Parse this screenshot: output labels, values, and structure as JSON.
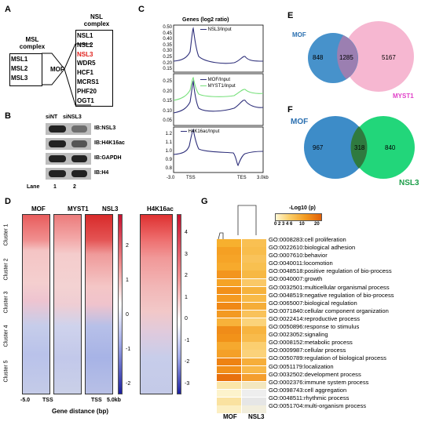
{
  "panels": {
    "A": "A",
    "B": "B",
    "C": "C",
    "D": "D",
    "E": "E",
    "F": "F",
    "G": "G"
  },
  "panelA": {
    "msl_title": [
      "MSL",
      "complex"
    ],
    "msl_items": [
      "MSL1",
      "MSL2",
      "MSL3"
    ],
    "center": "MOF",
    "nsl_title": [
      "NSL",
      "complex"
    ],
    "nsl_items": [
      "NSL1",
      "NSL2",
      "NSL3",
      "WDR5",
      "HCF1",
      "MCRS1",
      "PHF20",
      "OGT1"
    ],
    "highlight_color": "#e0201b"
  },
  "panelB": {
    "lanes_header": [
      "siNT",
      "siNSL3"
    ],
    "blots": [
      "IB:NSL3",
      "IB:H4K16ac",
      "IB:GAPDH",
      "IB:H4"
    ],
    "lane_label": "Lane",
    "lane_numbers": [
      "1",
      "2"
    ]
  },
  "panelC": {
    "title": "Genes (log2 ratio)",
    "plot1": {
      "legend": "NSL3/Input",
      "yticks": [
        "0.50",
        "0.45",
        "0.40",
        "0.35",
        "0.30",
        "0.25",
        "0.20",
        "0.15"
      ]
    },
    "plot2": {
      "legend": [
        "MOF/Input",
        "MYST1/Input"
      ],
      "yticks": [
        "0.25",
        "0.20",
        "0.15",
        "0.10",
        "0.05"
      ]
    },
    "plot3": {
      "legend": "H4K16ac/Input",
      "yticks": [
        "1.2",
        "1.1",
        "1.0",
        "0.9",
        "0.8"
      ]
    },
    "xticks": [
      "-3.0",
      "TSS",
      "TES",
      "3.0kb"
    ],
    "colors": {
      "dark": "#2e2f7a",
      "green": "#76e07a"
    }
  },
  "panelD": {
    "columns": [
      "MOF",
      "MYST1",
      "NSL3",
      "H4K16ac"
    ],
    "clusters": [
      "Cluster 1",
      "Cluster 2",
      "Cluster 3",
      "Cluster 4",
      "Cluster 5"
    ],
    "cb1_ticks": [
      "2",
      "1",
      "0",
      "-1",
      "-2"
    ],
    "cb2_ticks": [
      "4",
      "3",
      "2",
      "1",
      "0",
      "-1",
      "-2",
      "-3"
    ],
    "xticks": [
      "-5.0",
      "TSS",
      "TSS",
      "5.0kb"
    ],
    "xlabel": "Gene distance (bp)"
  },
  "panelE": {
    "left_label": "MOF",
    "right_label": "MYST1",
    "left": "848",
    "overlap": "1285",
    "right": "5167",
    "colors": {
      "left": "#3d8cc8",
      "right": "#f6b3cf",
      "label_left": "#2a6fb0",
      "label_right": "#e040c8"
    }
  },
  "panelF": {
    "left_label": "MOF",
    "right_label": "NSL3",
    "left": "967",
    "overlap": "318",
    "right": "840",
    "colors": {
      "left": "#3d8cc8",
      "right": "#22d67a",
      "label_left": "#2a6fb0",
      "label_right": "#1d9e4a"
    }
  },
  "panelG": {
    "legend_title": "-Log10 (p)",
    "legend_ticks": [
      "0 2 3 4 6",
      "10",
      "20"
    ],
    "columns": [
      "MOF",
      "NSL3"
    ],
    "terms": [
      "GO:0008283:cell proliferation",
      "GO:0022610:biological adhesion",
      "GO:0007610:behavior",
      "GO:0040011:locomotion",
      "GO:0048518:positive regulation of bio-process",
      "GO:0040007:growth",
      "GO:0032501:multicellular organismal process",
      "GO:0048519:negative regulation of bio-process",
      "GO:0065007:biological regulation",
      "GO:0071840:cellular component organization",
      "GO:0022414:reproductive process",
      "GO:0050896:response to stimulus",
      "GO:0023052:signaling",
      "GO:0008152:metabolic process",
      "GO:0009987:cellular process",
      "GO:0050789:regulation of biological process",
      "GO:0051179:localization",
      "GO:0032502:development process",
      "GO:0002376:immune system process",
      "GO:0098743:cell aggregation",
      "GO:0048511:rhythmic process",
      "GO:0051704:multi-organism process"
    ],
    "cells": [
      [
        "#f7b02e",
        "#f9c052"
      ],
      [
        "#f5a023",
        "#f8bd4c"
      ],
      [
        "#f6a427",
        "#f9c35a"
      ],
      [
        "#f7aa2c",
        "#f8c050"
      ],
      [
        "#f3951e",
        "#f7b844"
      ],
      [
        "#f5a326",
        "#fac866"
      ],
      [
        "#f29019",
        "#f6b23c"
      ],
      [
        "#f49a21",
        "#f8ba48"
      ],
      [
        "#f08816",
        "#f5ad38"
      ],
      [
        "#f39a22",
        "#f9c25a"
      ],
      [
        "#f8b23a",
        "#fbd37a"
      ],
      [
        "#f08c18",
        "#f7b440"
      ],
      [
        "#f29219",
        "#f8bb4c"
      ],
      [
        "#f6a92e",
        "#fbcf70"
      ],
      [
        "#f4a028",
        "#fbd27a"
      ],
      [
        "#ee8213",
        "#f6ae3a"
      ],
      [
        "#f18f1a",
        "#f8b848"
      ],
      [
        "#e8700d",
        "#f49e2e"
      ],
      [
        "#fbe6a8",
        "#f3e7bf"
      ],
      [
        "#fdf3cc",
        "#eeeeee"
      ],
      [
        "#fae2a0",
        "#e6e6e6"
      ],
      [
        "#fcefc2",
        "#f2eedd"
      ]
    ]
  }
}
